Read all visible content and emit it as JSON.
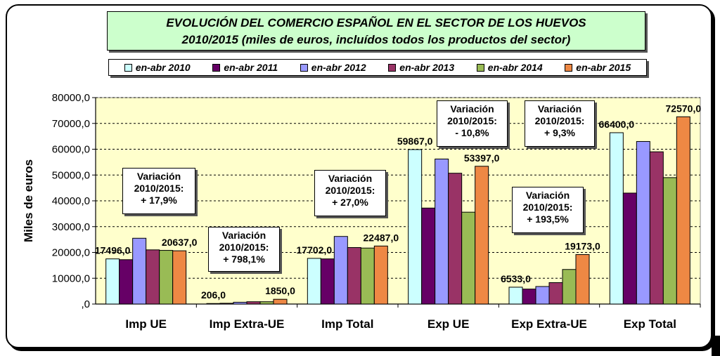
{
  "chart_data": {
    "type": "bar",
    "title_line1": "EVOLUCIÓN DEL COMERCIO ESPAÑOL EN EL SECTOR DE LOS HUEVOS",
    "title_line2": "2010/2015 (miles de euros, incluídos todos los productos del sector)",
    "ylabel": "Miles de euros",
    "ylim": [
      0,
      80000
    ],
    "yticks": [
      "80000,0",
      "70000,0",
      "60000,0",
      "50000,0",
      "40000,0",
      "30000,0",
      "20000,0",
      "10000,0",
      ",0"
    ],
    "grid": true,
    "legend_position": "top",
    "categories": [
      "Imp UE",
      "Imp Extra-UE",
      "Imp Total",
      "Exp UE",
      "Exp Extra-UE",
      "Exp Total"
    ],
    "series": [
      {
        "name": "en-abr 2010",
        "color": "#ccffff",
        "values": [
          17496,
          206,
          17702,
          59867,
          6533,
          66400
        ]
      },
      {
        "name": "en-abr 2011",
        "color": "#660066",
        "values": [
          17200,
          300,
          17500,
          37200,
          5800,
          43000
        ]
      },
      {
        "name": "en-abr 2012",
        "color": "#9999ff",
        "values": [
          25500,
          700,
          26200,
          56200,
          6800,
          63000
        ]
      },
      {
        "name": "en-abr 2013",
        "color": "#993366",
        "values": [
          21000,
          900,
          21900,
          50700,
          8300,
          59000
        ]
      },
      {
        "name": "en-abr 2014",
        "color": "#99bb55",
        "values": [
          20800,
          900,
          21700,
          35600,
          13400,
          49000
        ]
      },
      {
        "name": "en-abr 2015",
        "color": "#ee8844",
        "values": [
          20637,
          1850,
          22487,
          53397,
          19173,
          72570
        ]
      }
    ],
    "data_labels": [
      {
        "category": 0,
        "series": 0,
        "text": "17496,0"
      },
      {
        "category": 0,
        "series": 5,
        "text": "20637,0"
      },
      {
        "category": 1,
        "series": 0,
        "text": "206,0"
      },
      {
        "category": 1,
        "series": 5,
        "text": "1850,0"
      },
      {
        "category": 2,
        "series": 0,
        "text": "17702,0"
      },
      {
        "category": 2,
        "series": 5,
        "text": "22487,0"
      },
      {
        "category": 3,
        "series": 0,
        "text": "59867,0"
      },
      {
        "category": 3,
        "series": 5,
        "text": "53397,0"
      },
      {
        "category": 4,
        "series": 0,
        "text": "6533,0"
      },
      {
        "category": 4,
        "series": 5,
        "text": "19173,0"
      },
      {
        "category": 5,
        "series": 0,
        "text": "66400,0"
      },
      {
        "category": 5,
        "series": 5,
        "text": "72570,0"
      }
    ],
    "annotations": [
      "Variación\n2010/2015:\n+ 17,9%",
      "Variación\n2010/2015:\n+ 798,1%",
      "Variación\n2010/2015:\n+ 27,0%",
      "Variación\n2010/2015:\n-  10,8%",
      "Variación\n2010/2015:\n+ 193,5%",
      "Variación\n2010/2015:\n+ 9,3%"
    ],
    "colors": {
      "plot_background": "#ffffcc",
      "title_background": "#ccffcc"
    }
  }
}
